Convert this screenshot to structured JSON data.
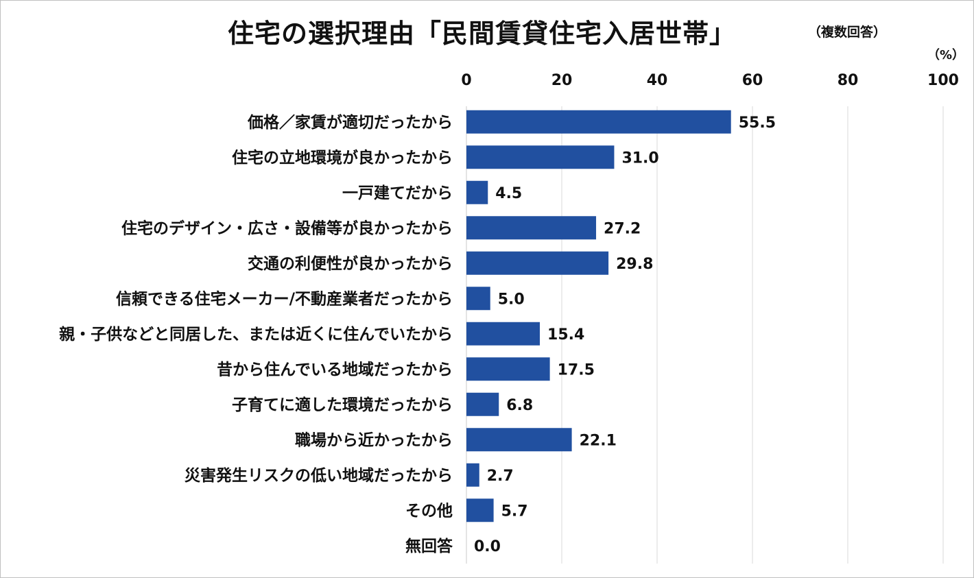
{
  "title": "住宅の選択理由「民間賃貸住宅入居世帯」",
  "subtitle": "（複数回答）",
  "unit": "（%）",
  "chart_data": {
    "type": "bar",
    "orientation": "horizontal",
    "title": "住宅の選択理由「民間賃貸住宅入居世帯」",
    "subtitle": "（複数回答）",
    "xlabel": "",
    "ylabel": "",
    "unit": "（%）",
    "xlim": [
      0,
      100
    ],
    "xticks": [
      0,
      20,
      40,
      60,
      80,
      100
    ],
    "grid": true,
    "bar_color": "#2150a0",
    "categories": [
      "価格／家賃が適切だったから",
      "住宅の立地環境が良かったから",
      "一戸建てだから",
      "住宅のデザイン・広さ・設備等が良かったから",
      "交通の利便性が良かったから",
      "信頼できる住宅メーカー/不動産業者だったから",
      "親・子供などと同居した、または近くに住んでいたから",
      "昔から住んでいる地域だったから",
      "子育てに適した環境だったから",
      "職場から近かったから",
      "災害発生リスクの低い地域だったから",
      "その他",
      "無回答"
    ],
    "values": [
      55.5,
      31.0,
      4.5,
      27.2,
      29.8,
      5.0,
      15.4,
      17.5,
      6.8,
      22.1,
      2.7,
      5.7,
      0.0
    ],
    "value_labels": [
      "55.5",
      "31.0",
      "4.5",
      "27.2",
      "29.8",
      "5.0",
      "15.4",
      "17.5",
      "6.8",
      "22.1",
      "2.7",
      "5.7",
      "0.0"
    ]
  }
}
